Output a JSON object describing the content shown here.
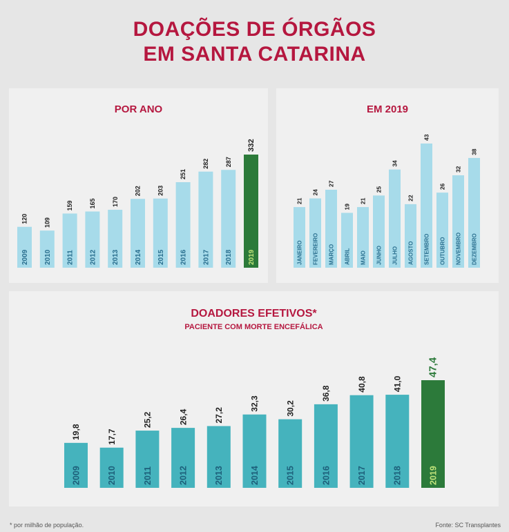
{
  "title_line1": "DOAÇÕES DE ÓRGÃOS",
  "title_line2": "EM SANTA CATARINA",
  "footnote": "* por milhão de população.",
  "source": "Fonte: SC Transplantes",
  "colors": {
    "title": "#b5173f",
    "bar_light": "#a7dbea",
    "bar_teal": "#45b3bd",
    "highlight": "#2c7a3a",
    "highlight_text": "#bfe37a",
    "axis_text": "#2a6f8f",
    "label_text": "#222222"
  },
  "chart_data": [
    {
      "type": "bar",
      "title": "POR ANO",
      "categories": [
        "2009",
        "2010",
        "2011",
        "2012",
        "2013",
        "2014",
        "2015",
        "2016",
        "2017",
        "2018",
        "2019"
      ],
      "values": [
        120,
        109,
        159,
        165,
        170,
        202,
        203,
        251,
        282,
        287,
        332
      ],
      "labels": [
        "120",
        "109",
        "159",
        "165",
        "170",
        "202",
        "203",
        "251",
        "282",
        "287",
        "332"
      ],
      "highlight_index": 10
    },
    {
      "type": "bar",
      "title": "EM 2019",
      "categories": [
        "JANEIRO",
        "FEVEREIRO",
        "MARÇO",
        "ABRIL",
        "MAIO",
        "JUNHO",
        "JULHO",
        "AGOSTO",
        "SETEMBRO",
        "OUTUBRO",
        "NOVEMBRO",
        "DEZEMBRO"
      ],
      "values": [
        21,
        24,
        27,
        19,
        21,
        25,
        34,
        22,
        43,
        26,
        32,
        38
      ],
      "labels": [
        "21",
        "24",
        "27",
        "19",
        "21",
        "25",
        "34",
        "22",
        "43",
        "26",
        "32",
        "38"
      ]
    },
    {
      "type": "bar",
      "title": "DOADORES EFETIVOS*",
      "subtitle": "PACIENTE COM MORTE ENCEFÁLICA",
      "categories": [
        "2009",
        "2010",
        "2011",
        "2012",
        "2013",
        "2014",
        "2015",
        "2016",
        "2017",
        "2018",
        "2019"
      ],
      "values": [
        19.8,
        17.7,
        25.2,
        26.4,
        27.2,
        32.3,
        30.2,
        36.8,
        40.8,
        41.0,
        47.4
      ],
      "labels": [
        "19,8",
        "17,7",
        "25,2",
        "26,4",
        "27,2",
        "32,3",
        "30,2",
        "36,8",
        "40,8",
        "41,0",
        "47,4"
      ],
      "highlight_index": 10
    }
  ]
}
